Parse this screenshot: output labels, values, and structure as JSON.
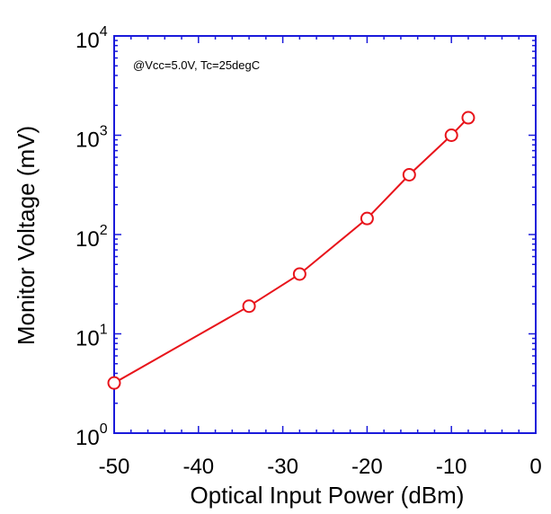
{
  "chart_data": {
    "type": "line",
    "title": "",
    "xlabel": "Optical Input Power (dBm)",
    "ylabel": "Monitor Voltage (mV)",
    "xlim": [
      -50,
      0
    ],
    "ylim": [
      1,
      10000
    ],
    "yscale": "log",
    "grid": false,
    "x_ticks": [
      {
        "value": -50,
        "label": "-50"
      },
      {
        "value": -40,
        "label": "-40"
      },
      {
        "value": -30,
        "label": "-30"
      },
      {
        "value": -20,
        "label": "-20"
      },
      {
        "value": -10,
        "label": "-10"
      },
      {
        "value": 0,
        "label": "0"
      }
    ],
    "y_ticks": [
      {
        "value": 1,
        "base": "10",
        "exp": "0"
      },
      {
        "value": 10,
        "base": "10",
        "exp": "1"
      },
      {
        "value": 100,
        "base": "10",
        "exp": "2"
      },
      {
        "value": 1000,
        "base": "10",
        "exp": "3"
      },
      {
        "value": 10000,
        "base": "10",
        "exp": "4"
      }
    ],
    "annotation": "@Vcc=5.0V, Tc=25degC",
    "series": [
      {
        "x": [
          -50,
          -34,
          -28,
          -20,
          -15,
          -10,
          -8
        ],
        "y": [
          3.2,
          19,
          40,
          145,
          400,
          1000,
          1500
        ]
      }
    ],
    "colors": {
      "series": "#e8141b",
      "frame": "#1a1adb",
      "text": "#000000"
    }
  }
}
